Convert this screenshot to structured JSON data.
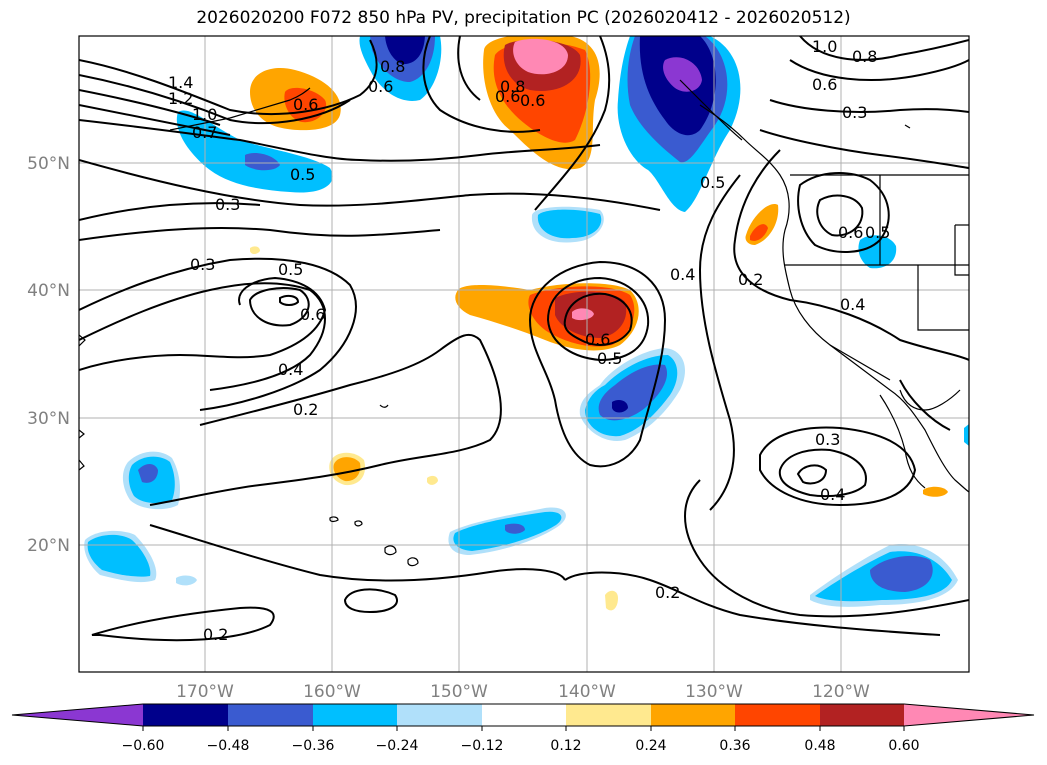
{
  "title": "2026020200 F072 850 hPa PV, precipitation PC (2026020412 - 2026020512)",
  "map": {
    "lon_labels": [
      "170°W",
      "160°W",
      "150°W",
      "140°W",
      "130°W",
      "120°W"
    ],
    "lat_labels": [
      "50°N",
      "40°N",
      "30°N",
      "20°N"
    ],
    "contour_labels": [
      "1.4",
      "1.2",
      "1.0",
      "0.7",
      "0.6",
      "0.6",
      "0.8",
      "0.6",
      "0.8",
      "0.6",
      "1.0",
      "0.8",
      "0.6",
      "0.3",
      "0.5",
      "0.3",
      "0.3",
      "0.5",
      "0.6",
      "0.4",
      "0.2",
      "0.6",
      "0.5",
      "0.4",
      "0.5",
      "0.2",
      "0.6",
      "0.5",
      "0.4",
      "0.3",
      "0.4",
      "0.2",
      "0.2"
    ]
  },
  "colorbar": {
    "ticks": [
      "−0.60",
      "−0.48",
      "−0.36",
      "−0.24",
      "−0.12",
      "0.12",
      "0.24",
      "0.36",
      "0.48",
      "0.60"
    ],
    "colors": [
      "#8b37d2",
      "#00008b",
      "#3a5bd0",
      "#00bfff",
      "#b0e0fa",
      "#ffffff",
      "#ffe98f",
      "#ffa500",
      "#ff4500",
      "#b22222",
      "#ff88b4"
    ]
  }
}
